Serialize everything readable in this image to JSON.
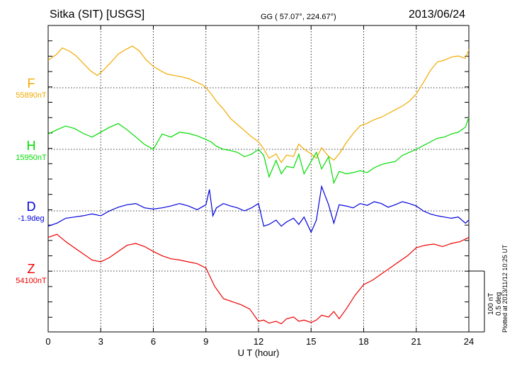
{
  "header": {
    "station": "Sitka (SIT)  [USGS]",
    "coords": "GG ( 57.07°, 224.67°)",
    "date": "2013/06/24"
  },
  "footer": {
    "plotted": "Plotted at 2013/11/12 10:25 UT",
    "scale_nt": "100 nT",
    "scale_deg": "0.5 deg"
  },
  "chart_data": {
    "type": "line",
    "xlabel": "U T (hour)",
    "xlim": [
      0,
      24
    ],
    "xticks": [
      0,
      3,
      6,
      9,
      12,
      15,
      18,
      21,
      24
    ],
    "series": [
      {
        "name": "F",
        "baseline_label": "55890nT",
        "color": "#f2aa00",
        "x": [
          0,
          0.5,
          0.8,
          1.2,
          1.6,
          2,
          2.4,
          2.8,
          3.2,
          3.6,
          4,
          4.4,
          4.8,
          5.2,
          5.6,
          6,
          6.4,
          6.8,
          7.2,
          7.6,
          8,
          8.4,
          8.8,
          9,
          9.3,
          9.6,
          10,
          10.4,
          10.8,
          11.2,
          11.6,
          12,
          12.3,
          12.6,
          13,
          13.3,
          13.6,
          14,
          14.3,
          14.6,
          15,
          15.3,
          15.6,
          16,
          16.3,
          16.6,
          17,
          17.4,
          17.8,
          18.2,
          18.6,
          19,
          19.4,
          19.8,
          20.2,
          20.6,
          21,
          21.4,
          21.8,
          22.2,
          22.6,
          23,
          23.4,
          23.8,
          24
        ],
        "y": [
          45,
          55,
          65,
          60,
          52,
          40,
          28,
          20,
          30,
          42,
          55,
          62,
          68,
          60,
          45,
          35,
          28,
          22,
          20,
          18,
          15,
          10,
          5,
          0,
          -10,
          -22,
          -35,
          -50,
          -60,
          -70,
          -80,
          -88,
          -100,
          -115,
          -108,
          -122,
          -110,
          -112,
          -92,
          -100,
          -108,
          -115,
          -98,
          -112,
          -118,
          -108,
          -90,
          -75,
          -62,
          -58,
          -52,
          -48,
          -42,
          -36,
          -30,
          -22,
          -10,
          8,
          28,
          42,
          45,
          50,
          52,
          48,
          62
        ]
      },
      {
        "name": "H",
        "baseline_label": "15950nT",
        "color": "#00dd00",
        "x": [
          0,
          0.5,
          1,
          1.5,
          2,
          2.5,
          3,
          3.5,
          4,
          4.5,
          5,
          5.5,
          6,
          6.5,
          7,
          7.5,
          8,
          8.5,
          9,
          9.3,
          9.6,
          10,
          10.4,
          10.8,
          11.2,
          11.6,
          12,
          12.3,
          12.6,
          13,
          13.3,
          13.6,
          14,
          14.3,
          14.6,
          15,
          15.3,
          15.6,
          16,
          16.3,
          16.6,
          17,
          17.4,
          17.8,
          18.2,
          18.6,
          19,
          19.4,
          19.8,
          20.2,
          20.6,
          21,
          21.4,
          21.8,
          22.2,
          22.6,
          23,
          23.4,
          23.8,
          24
        ],
        "y": [
          25,
          32,
          38,
          34,
          26,
          20,
          28,
          36,
          42,
          32,
          20,
          8,
          0,
          25,
          20,
          28,
          26,
          22,
          16,
          12,
          5,
          0,
          -2,
          -5,
          -12,
          -8,
          0,
          -10,
          -45,
          -18,
          -40,
          -28,
          -30,
          -8,
          -40,
          -20,
          -5,
          -32,
          -12,
          -55,
          -36,
          -40,
          -38,
          -35,
          -38,
          -30,
          -25,
          -22,
          -20,
          -10,
          -5,
          0,
          6,
          12,
          18,
          20,
          25,
          28,
          36,
          52
        ]
      },
      {
        "name": "D",
        "baseline_label": "-1.9deg",
        "color": "#0000dd",
        "x": [
          0,
          0.5,
          1,
          1.5,
          2,
          2.5,
          3,
          3.5,
          4,
          4.5,
          5,
          5.5,
          6,
          6.5,
          7,
          7.5,
          8,
          8.5,
          9,
          9.2,
          9.4,
          9.6,
          10,
          10.4,
          10.8,
          11.2,
          11.6,
          12,
          12.3,
          12.6,
          13,
          13.3,
          13.6,
          14,
          14.3,
          14.6,
          15,
          15.3,
          15.6,
          16,
          16.3,
          16.6,
          17,
          17.4,
          17.8,
          18.2,
          18.6,
          19,
          19.4,
          19.8,
          20.2,
          20.6,
          21,
          21.4,
          21.8,
          22.2,
          22.6,
          23,
          23.4,
          23.8,
          24
        ],
        "y": [
          -25,
          -20,
          -12,
          -10,
          -8,
          -5,
          -8,
          0,
          6,
          10,
          12,
          5,
          3,
          5,
          8,
          12,
          8,
          2,
          10,
          35,
          -8,
          5,
          12,
          8,
          5,
          0,
          5,
          12,
          -25,
          -22,
          -15,
          -25,
          -18,
          -12,
          -22,
          -10,
          -35,
          -15,
          40,
          10,
          -20,
          10,
          8,
          5,
          12,
          9,
          15,
          12,
          6,
          10,
          15,
          12,
          8,
          0,
          -5,
          -8,
          -10,
          -12,
          -10,
          -20,
          -15
        ]
      },
      {
        "name": "Z",
        "baseline_label": "54100nT",
        "color": "#ee0000",
        "x": [
          0,
          0.5,
          1,
          1.5,
          2,
          2.5,
          3,
          3.5,
          4,
          4.5,
          5,
          5.5,
          6,
          6.5,
          7,
          7.5,
          8,
          8.5,
          9,
          9.5,
          10,
          10.5,
          11,
          11.5,
          12,
          12.3,
          12.6,
          13,
          13.3,
          13.6,
          14,
          14.3,
          14.6,
          15,
          15.3,
          15.6,
          16,
          16.3,
          16.6,
          17,
          17.5,
          18,
          18.5,
          19,
          19.5,
          20,
          20.5,
          21,
          21.5,
          22,
          22.5,
          23,
          23.5,
          24
        ],
        "y": [
          55,
          60,
          48,
          38,
          28,
          18,
          15,
          22,
          32,
          42,
          45,
          40,
          32,
          25,
          20,
          18,
          15,
          12,
          5,
          -25,
          -45,
          -50,
          -55,
          -62,
          -82,
          -80,
          -85,
          -82,
          -86,
          -78,
          -75,
          -82,
          -80,
          -84,
          -80,
          -72,
          -75,
          -66,
          -78,
          -62,
          -40,
          -22,
          -15,
          -5,
          5,
          15,
          25,
          38,
          42,
          44,
          40,
          45,
          48,
          55
        ]
      }
    ],
    "baselines": {
      "F": 55890,
      "H": 15950,
      "D": -1.9,
      "Z": 54100
    },
    "scale": "100 nT / 0.5 deg",
    "grid": true
  }
}
